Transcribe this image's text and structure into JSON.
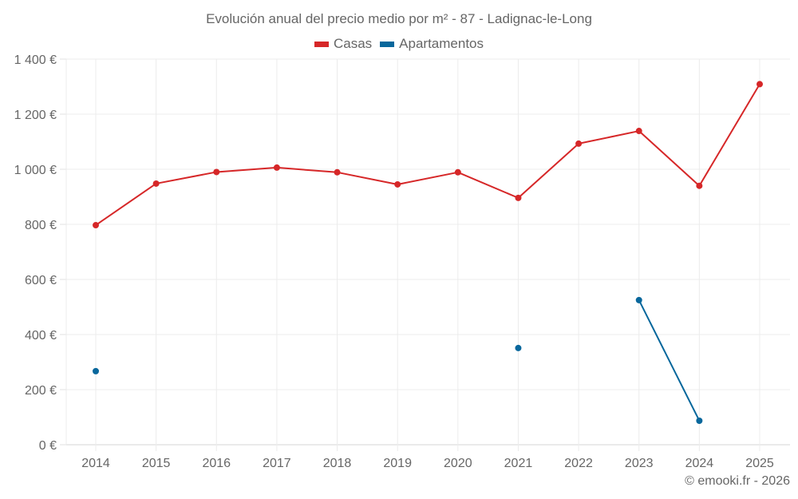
{
  "chart_data": {
    "type": "line",
    "title": "Evolución anual del precio medio por m² - 87 - Ladignac-le-Long",
    "xlabel": "",
    "ylabel": "",
    "categories": [
      "2014",
      "2015",
      "2016",
      "2017",
      "2018",
      "2019",
      "2020",
      "2021",
      "2022",
      "2023",
      "2024",
      "2025"
    ],
    "ylim": [
      0,
      1400
    ],
    "yticks": [
      0,
      200,
      400,
      600,
      800,
      1000,
      1200,
      1400
    ],
    "ytick_labels": [
      "0 €",
      "200 €",
      "400 €",
      "600 €",
      "800 €",
      "1 000 €",
      "1 200 €",
      "1 400 €"
    ],
    "grid": true,
    "legend_position": "top-center",
    "series": [
      {
        "name": "Casas",
        "color": "#d62728",
        "values": [
          797,
          948,
          990,
          1006,
          989,
          945,
          989,
          896,
          1093,
          1139,
          940,
          1309
        ]
      },
      {
        "name": "Apartamentos",
        "color": "#08679c",
        "values": [
          267,
          null,
          null,
          null,
          null,
          null,
          null,
          351,
          null,
          525,
          87,
          null
        ]
      }
    ]
  },
  "credit": "© emooki.fr - 2026"
}
